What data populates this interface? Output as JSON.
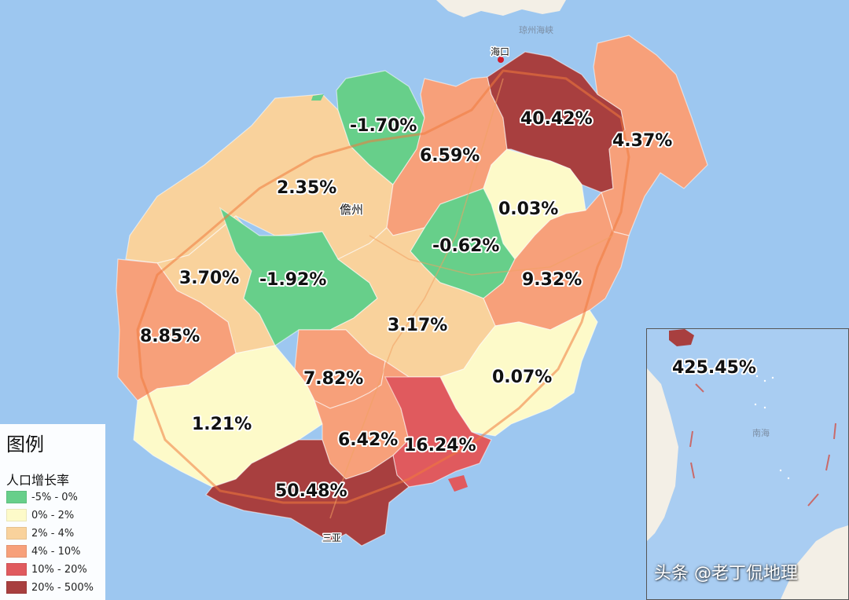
{
  "map_labels": {
    "haikou": "海口",
    "qiongzhou_strait": "琼州海峡",
    "danzhou": "儋州",
    "sanya_bay": "三亚",
    "inset_sea": "南海"
  },
  "regions": [
    {
      "id": "lingao",
      "value": "-1.70%",
      "color": "#67cf8a"
    },
    {
      "id": "chengmai",
      "value": "6.59%",
      "color": "#f7a07a"
    },
    {
      "id": "haikou",
      "value": "40.42%",
      "color": "#a83f3f"
    },
    {
      "id": "wenchang",
      "value": "4.37%",
      "color": "#f7a07a"
    },
    {
      "id": "danzhou",
      "value": "2.35%",
      "color": "#f9d29c"
    },
    {
      "id": "tunchang",
      "value": "-0.62%",
      "color": "#67cf8a"
    },
    {
      "id": "dingan",
      "value": "0.03%",
      "color": "#fdfac9"
    },
    {
      "id": "qionghai",
      "value": "9.32%",
      "color": "#f7a07a"
    },
    {
      "id": "changjiang",
      "value": "3.70%",
      "color": "#f9d29c"
    },
    {
      "id": "baisha",
      "value": "-1.92%",
      "color": "#67cf8a"
    },
    {
      "id": "dongfang",
      "value": "8.85%",
      "color": "#f7a07a"
    },
    {
      "id": "qiongzhong",
      "value": "3.17%",
      "color": "#f9d29c"
    },
    {
      "id": "wanning",
      "value": "0.07%",
      "color": "#fdfac9"
    },
    {
      "id": "wuzhishan",
      "value": "7.82%",
      "color": "#f7a07a"
    },
    {
      "id": "ledong",
      "value": "1.21%",
      "color": "#fdfac9"
    },
    {
      "id": "baoting",
      "value": "6.42%",
      "color": "#f7a07a"
    },
    {
      "id": "lingshui",
      "value": "16.24%",
      "color": "#e05a5e"
    },
    {
      "id": "sanya",
      "value": "50.48%",
      "color": "#a83f3f"
    },
    {
      "id": "sansha",
      "value": "425.45%",
      "color": "#a83f3f"
    }
  ],
  "legend": {
    "title": "图例",
    "subtitle": "人口增长率",
    "items": [
      {
        "label": "-5% - 0%",
        "color": "#67cf8a"
      },
      {
        "label": "0% - 2%",
        "color": "#fdfac9"
      },
      {
        "label": "2% - 4%",
        "color": "#f9d29c"
      },
      {
        "label": "4% - 10%",
        "color": "#f7a07a"
      },
      {
        "label": "10% - 20%",
        "color": "#e05a5e"
      },
      {
        "label": "20% - 500%",
        "color": "#a83f3f"
      }
    ]
  },
  "watermark": "头条 @老丁侃地理"
}
